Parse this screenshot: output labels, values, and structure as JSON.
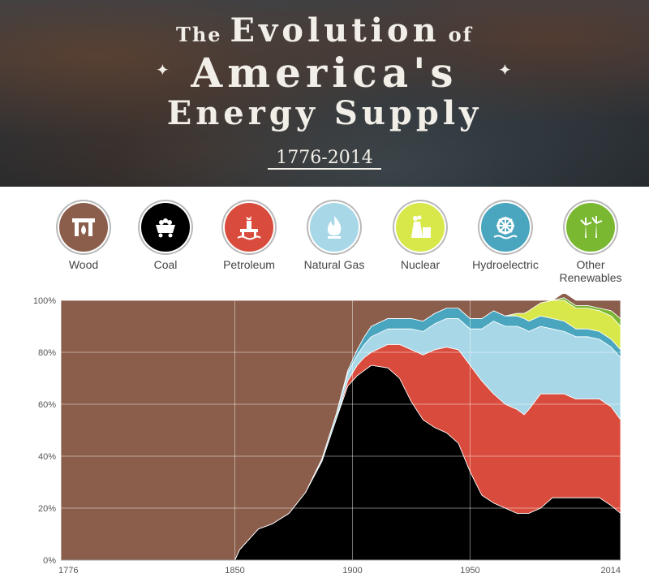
{
  "header": {
    "title_line1_the": "The",
    "title_line1_main": "Evolution",
    "title_line1_of": "of",
    "title_line2": "America's",
    "title_line3": "Energy Supply",
    "date_range": "1776-2014"
  },
  "legend": [
    {
      "label": "Wood",
      "color": "#8b5e4c",
      "icon": "fireplace-icon"
    },
    {
      "label": "Coal",
      "color": "#000000",
      "icon": "coal-cart-icon"
    },
    {
      "label": "Petroleum",
      "color": "#d94c3d",
      "icon": "oil-rig-icon"
    },
    {
      "label": "Natural Gas",
      "color": "#a8d8e8",
      "icon": "flame-icon"
    },
    {
      "label": "Nuclear",
      "color": "#d8e84a",
      "icon": "cooling-tower-icon"
    },
    {
      "label": "Hydroelectric",
      "color": "#4aa6bf",
      "icon": "water-wheel-icon"
    },
    {
      "label": "Other",
      "label2": "Renewables",
      "color": "#7bb832",
      "icon": "wind-turbine-icon"
    }
  ],
  "chart_data": {
    "type": "area",
    "stacked": true,
    "x": [
      1776,
      1849,
      1850,
      1852,
      1860,
      1866,
      1873,
      1880,
      1887,
      1893,
      1898,
      1902,
      1905,
      1908,
      1915,
      1920,
      1925,
      1930,
      1935,
      1940,
      1945,
      1950,
      1955,
      1960,
      1965,
      1970,
      1973,
      1975,
      1980,
      1985,
      1990,
      1995,
      2000,
      2005,
      2010,
      2014
    ],
    "series": [
      {
        "name": "Coal",
        "color": "#000000",
        "values": [
          0,
          0,
          0,
          4,
          12,
          14,
          18,
          26,
          38,
          54,
          67,
          71,
          73,
          75,
          74,
          70,
          61,
          54,
          51,
          49,
          45,
          34,
          25,
          22,
          20,
          18,
          18,
          18,
          20,
          24,
          24,
          24,
          24,
          24,
          21,
          18
        ]
      },
      {
        "name": "Petroleum",
        "color": "#d94c3d",
        "values": [
          0,
          0,
          0,
          0,
          0,
          0,
          0,
          0,
          0,
          0,
          2,
          4,
          5,
          5,
          9,
          13,
          20,
          25,
          30,
          33,
          36,
          41,
          44,
          42,
          40,
          40,
          38,
          40,
          44,
          40,
          40,
          38,
          38,
          38,
          38,
          36
        ]
      },
      {
        "name": "Natural Gas",
        "color": "#a8d8e8",
        "values": [
          0,
          0,
          0,
          0,
          0,
          0,
          0,
          0,
          1,
          2,
          3,
          4,
          5,
          6,
          6,
          6,
          8,
          9,
          10,
          11,
          12,
          14,
          20,
          28,
          30,
          32,
          33,
          30,
          26,
          25,
          24,
          24,
          24,
          23,
          23,
          24
        ]
      },
      {
        "name": "Hydroelectric",
        "color": "#4aa6bf",
        "values": [
          0,
          0,
          0,
          0,
          0,
          0,
          0,
          0,
          0,
          0,
          1,
          2,
          3,
          4,
          4,
          4,
          4,
          4,
          4,
          4,
          4,
          4,
          4,
          4,
          4,
          4,
          4,
          4,
          4,
          4,
          4,
          3,
          3,
          3,
          3,
          3
        ]
      },
      {
        "name": "Nuclear",
        "color": "#d8e84a",
        "values": [
          0,
          0,
          0,
          0,
          0,
          0,
          0,
          0,
          0,
          0,
          0,
          0,
          0,
          0,
          0,
          0,
          0,
          0,
          0,
          0,
          0,
          0,
          0,
          0,
          0,
          1,
          2,
          4,
          5,
          7,
          8,
          8,
          8,
          8,
          9,
          9
        ]
      },
      {
        "name": "Other Renewables",
        "color": "#7bb832",
        "values": [
          0,
          0,
          0,
          0,
          0,
          0,
          0,
          0,
          0,
          0,
          0,
          0,
          0,
          0,
          0,
          0,
          0,
          0,
          0,
          0,
          0,
          0,
          0,
          0,
          0,
          0,
          0,
          0,
          0,
          0,
          1,
          1,
          1,
          1,
          2,
          3
        ]
      },
      {
        "name": "Wood",
        "color": "#8b5e4c",
        "values": [
          100,
          100,
          100,
          96,
          88,
          86,
          82,
          74,
          61,
          44,
          27,
          19,
          14,
          10,
          7,
          7,
          7,
          8,
          5,
          3,
          3,
          7,
          7,
          4,
          6,
          5,
          5,
          4,
          1,
          0,
          2,
          2,
          2,
          3,
          4,
          7
        ]
      }
    ],
    "xticks": [
      1776,
      1850,
      1900,
      1950,
      2014
    ],
    "yticks": [
      0,
      20,
      40,
      60,
      80,
      100
    ],
    "ytick_labels": [
      "0%",
      "20%",
      "40%",
      "60%",
      "80%",
      "100%"
    ],
    "xlim": [
      1776,
      2014
    ],
    "ylim": [
      0,
      100
    ],
    "grid": true
  }
}
